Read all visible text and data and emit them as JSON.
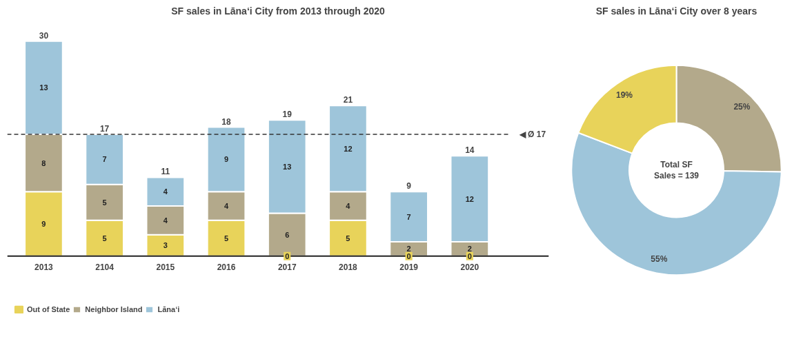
{
  "chart_data": [
    {
      "type": "bar",
      "title": "SF sales in Lānaʻi City from 2013 through 2020",
      "categories": [
        "2013",
        "2104",
        "2015",
        "2016",
        "2017",
        "2018",
        "2019",
        "2020"
      ],
      "stacked": true,
      "data_labels": true,
      "legend": "bottom",
      "grid": false,
      "series": [
        {
          "name": "Out of State",
          "color": "#e8d35a",
          "values": [
            9,
            5,
            3,
            5,
            0,
            5,
            0,
            0
          ]
        },
        {
          "name": "Neighbor Island",
          "color": "#b3a98b",
          "values": [
            8,
            5,
            4,
            4,
            6,
            4,
            2,
            2
          ]
        },
        {
          "name": "Lānaʻi",
          "color": "#9ec5da",
          "values": [
            13,
            7,
            4,
            9,
            13,
            12,
            7,
            12
          ]
        }
      ],
      "totals": [
        "30",
        "17",
        "11",
        "18",
        "19",
        "21",
        "9",
        "14"
      ],
      "ref_lines": [
        {
          "axis": "y",
          "value": 17,
          "label": "◀ Ø 17",
          "line_style": "dashed",
          "color": "#333333"
        }
      ]
    },
    {
      "type": "donut",
      "title": "SF sales in Lānaʻi City over 8 years",
      "categories": [
        null,
        null,
        null
      ],
      "values": [
        25,
        55,
        19
      ],
      "colors": [
        "#b3a98b",
        "#9ec5da",
        "#e8d35a"
      ],
      "value_labels": [
        "25%",
        "55%",
        "19%"
      ],
      "legend": false,
      "annotations": [
        "Total SF\nSales = 139"
      ]
    }
  ]
}
